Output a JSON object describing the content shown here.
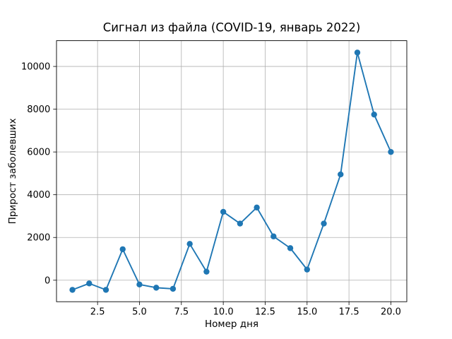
{
  "figure": {
    "title": "Сигнал из файла (COVID-19, январь 2022)"
  },
  "chart_data": {
    "type": "line",
    "title": "Сигнал из файла (COVID-19, январь 2022)",
    "xlabel": "Номер дня",
    "ylabel": "Прирост заболевших",
    "x": [
      1,
      2,
      3,
      4,
      5,
      6,
      7,
      8,
      9,
      10,
      11,
      12,
      13,
      14,
      15,
      16,
      17,
      18,
      19,
      20
    ],
    "values": [
      -450,
      -150,
      -450,
      1450,
      -200,
      -350,
      -400,
      1700,
      400,
      3200,
      2650,
      3400,
      2050,
      1500,
      500,
      2650,
      4950,
      10650,
      7750,
      6000
    ],
    "xlim": [
      0.05,
      20.95
    ],
    "ylim": [
      -1005,
      11205
    ],
    "xticks": [
      2.5,
      5,
      7.5,
      10,
      12.5,
      15,
      17.5,
      20
    ],
    "xtick_labels": [
      "2.5",
      "5.0",
      "7.5",
      "10.0",
      "12.5",
      "15.0",
      "17.5",
      "20.0"
    ],
    "yticks": [
      0,
      2000,
      4000,
      6000,
      8000,
      10000
    ],
    "ytick_labels": [
      "0",
      "2000",
      "4000",
      "6000",
      "8000",
      "10000"
    ],
    "grid": true,
    "legend": "none",
    "line_color": "#1f77b4",
    "marker": "circle"
  }
}
